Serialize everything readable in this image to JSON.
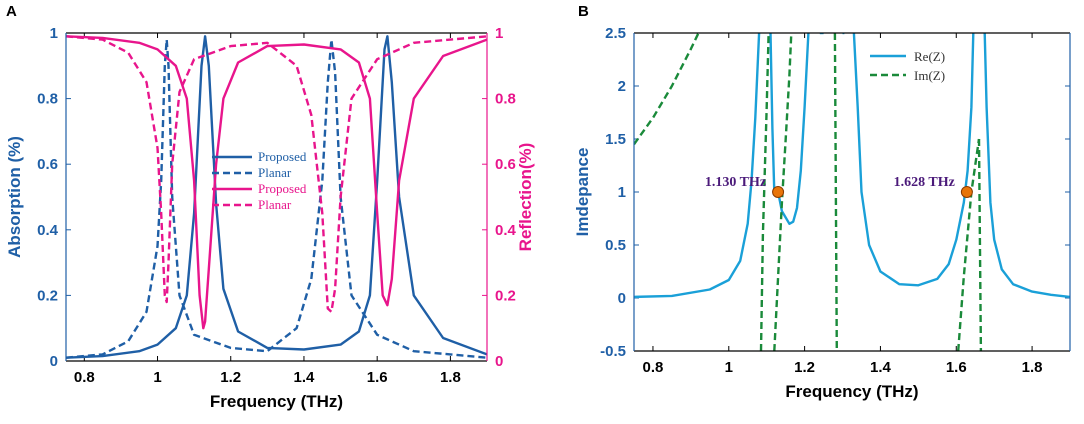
{
  "chart_data": [
    {
      "panel": "A",
      "type": "line",
      "xlabel": "Frequency (THz)",
      "ylabel": "Absorption (%)",
      "y2label": "Reflection(%)",
      "xlim": [
        0.75,
        1.9
      ],
      "ylim": [
        0,
        1
      ],
      "y2lim": [
        0,
        1
      ],
      "xticks": [
        "0.8",
        "1",
        "1.2",
        "1.4",
        "1.6",
        "1.8"
      ],
      "yticks": [
        "0",
        "0.2",
        "0.4",
        "0.6",
        "0.8",
        "1"
      ],
      "y2ticks": [
        "0",
        "0.2",
        "0.4",
        "0.6",
        "0.8",
        "1"
      ],
      "colors": {
        "absorption": "#1f5fa6",
        "reflection": "#e8158c"
      },
      "legend_position": "center",
      "series": [
        {
          "name": "Proposed",
          "axis": "left",
          "style": "solid",
          "x": [
            0.75,
            0.85,
            0.95,
            1.0,
            1.05,
            1.08,
            1.1,
            1.12,
            1.13,
            1.14,
            1.16,
            1.18,
            1.22,
            1.3,
            1.4,
            1.5,
            1.55,
            1.58,
            1.6,
            1.62,
            1.628,
            1.64,
            1.66,
            1.7,
            1.78,
            1.9
          ],
          "values": [
            0.01,
            0.015,
            0.03,
            0.05,
            0.1,
            0.2,
            0.45,
            0.9,
            0.99,
            0.9,
            0.48,
            0.22,
            0.09,
            0.04,
            0.035,
            0.05,
            0.09,
            0.2,
            0.55,
            0.95,
            0.99,
            0.85,
            0.5,
            0.2,
            0.07,
            0.02
          ]
        },
        {
          "name": "Planar",
          "axis": "left",
          "style": "dashed",
          "x": [
            0.75,
            0.85,
            0.92,
            0.97,
            1.0,
            1.01,
            1.02,
            1.025,
            1.03,
            1.04,
            1.06,
            1.1,
            1.2,
            1.3,
            1.38,
            1.42,
            1.45,
            1.465,
            1.475,
            1.485,
            1.5,
            1.53,
            1.6,
            1.7,
            1.8,
            1.9
          ],
          "values": [
            0.01,
            0.02,
            0.06,
            0.15,
            0.35,
            0.55,
            0.9,
            0.98,
            0.9,
            0.5,
            0.2,
            0.08,
            0.04,
            0.03,
            0.1,
            0.25,
            0.55,
            0.85,
            0.98,
            0.88,
            0.5,
            0.2,
            0.08,
            0.03,
            0.02,
            0.01
          ]
        },
        {
          "name": "Proposed",
          "axis": "right",
          "style": "solid",
          "x": [
            0.75,
            0.85,
            0.95,
            1.0,
            1.05,
            1.08,
            1.1,
            1.115,
            1.125,
            1.13,
            1.14,
            1.16,
            1.18,
            1.22,
            1.3,
            1.4,
            1.5,
            1.55,
            1.58,
            1.6,
            1.615,
            1.628,
            1.64,
            1.66,
            1.7,
            1.78,
            1.9
          ],
          "values": [
            0.99,
            0.985,
            0.97,
            0.95,
            0.9,
            0.8,
            0.55,
            0.2,
            0.1,
            0.12,
            0.28,
            0.6,
            0.8,
            0.91,
            0.96,
            0.965,
            0.95,
            0.91,
            0.8,
            0.45,
            0.2,
            0.17,
            0.25,
            0.55,
            0.8,
            0.93,
            0.98
          ]
        },
        {
          "name": "Planar",
          "axis": "right",
          "style": "dashed",
          "x": [
            0.75,
            0.85,
            0.92,
            0.97,
            1.0,
            1.01,
            1.02,
            1.025,
            1.03,
            1.04,
            1.06,
            1.1,
            1.2,
            1.3,
            1.38,
            1.42,
            1.45,
            1.465,
            1.475,
            1.485,
            1.5,
            1.53,
            1.6,
            1.7,
            1.8,
            1.9
          ],
          "values": [
            0.99,
            0.98,
            0.94,
            0.85,
            0.65,
            0.45,
            0.2,
            0.18,
            0.3,
            0.6,
            0.82,
            0.92,
            0.96,
            0.97,
            0.9,
            0.75,
            0.45,
            0.16,
            0.15,
            0.22,
            0.5,
            0.8,
            0.92,
            0.97,
            0.98,
            0.99
          ]
        }
      ]
    },
    {
      "panel": "B",
      "type": "line",
      "xlabel": "Frequency (THz)",
      "ylabel": "Imdepance",
      "xlim": [
        0.75,
        1.9
      ],
      "ylim": [
        -0.5,
        2.5
      ],
      "xticks": [
        "0.8",
        "1",
        "1.2",
        "1.4",
        "1.6",
        "1.8"
      ],
      "yticks": [
        "-0.5",
        "0",
        "0.5",
        "1",
        "1.5",
        "2",
        "2.5"
      ],
      "colors": {
        "re": "#1aa0d8",
        "im": "#1a8a3a",
        "marker": "#e8750a",
        "annotation": "#4b1a7a"
      },
      "legend_position": "top-right",
      "series": [
        {
          "name": "Re(Z)",
          "style": "solid",
          "segments": [
            {
              "x": [
                0.75,
                0.85,
                0.95,
                1.0,
                1.03,
                1.05,
                1.06,
                1.07,
                1.075,
                1.08
              ],
              "values": [
                0.01,
                0.02,
                0.08,
                0.17,
                0.35,
                0.7,
                1.1,
                1.7,
                2.1,
                2.5
              ]
            },
            {
              "x": [
                1.11,
                1.115,
                1.12,
                1.13,
                1.14,
                1.16,
                1.17,
                1.18,
                1.19,
                1.2,
                1.21
              ],
              "values": [
                2.5,
                1.6,
                1.0,
                1.0,
                0.82,
                0.7,
                0.72,
                0.85,
                1.2,
                1.8,
                2.5
              ]
            },
            {
              "x": [
                1.24,
                1.25
              ],
              "values": [
                2.5,
                2.5
              ]
            },
            {
              "x": [
                1.3,
                1.305
              ],
              "values": [
                2.5,
                2.5
              ]
            },
            {
              "x": [
                1.33,
                1.34,
                1.35,
                1.37,
                1.4,
                1.45,
                1.5,
                1.55,
                1.58,
                1.6,
                1.62,
                1.63,
                1.64,
                1.645
              ],
              "values": [
                2.5,
                1.8,
                1.0,
                0.5,
                0.25,
                0.13,
                0.12,
                0.18,
                0.32,
                0.55,
                0.9,
                1.2,
                1.8,
                2.5
              ]
            },
            {
              "x": [
                1.675,
                1.68,
                1.69,
                1.7,
                1.72,
                1.75,
                1.8,
                1.85,
                1.9
              ],
              "values": [
                2.5,
                1.8,
                0.9,
                0.55,
                0.27,
                0.13,
                0.06,
                0.03,
                0.01
              ]
            }
          ]
        },
        {
          "name": "Im(Z)",
          "style": "dashed",
          "segments": [
            {
              "x": [
                0.75,
                0.8,
                0.85,
                0.9,
                0.92
              ],
              "values": [
                1.45,
                1.7,
                2.0,
                2.35,
                2.5
              ]
            },
            {
              "x": [
                1.085,
                1.09,
                1.1,
                1.105
              ],
              "values": [
                -0.5,
                0.6,
                1.8,
                2.5
              ]
            },
            {
              "x": [
                1.12,
                1.13,
                1.14,
                1.15,
                1.16,
                1.165
              ],
              "values": [
                -0.5,
                0.2,
                0.9,
                1.5,
                2.1,
                2.5
              ]
            },
            {
              "x": [
                1.28,
                1.285
              ],
              "values": [
                2.5,
                -0.5
              ]
            },
            {
              "x": [
                1.605,
                1.62,
                1.64,
                1.66
              ],
              "values": [
                -0.5,
                0.2,
                1.0,
                1.5
              ]
            },
            {
              "x": [
                1.66,
                1.665
              ],
              "values": [
                1.5,
                -0.5
              ]
            }
          ]
        }
      ],
      "points": [
        {
          "x": 1.13,
          "y": 1.0,
          "label": "1.130 THz"
        },
        {
          "x": 1.628,
          "y": 1.0,
          "label": "1.628 THz"
        }
      ]
    }
  ]
}
